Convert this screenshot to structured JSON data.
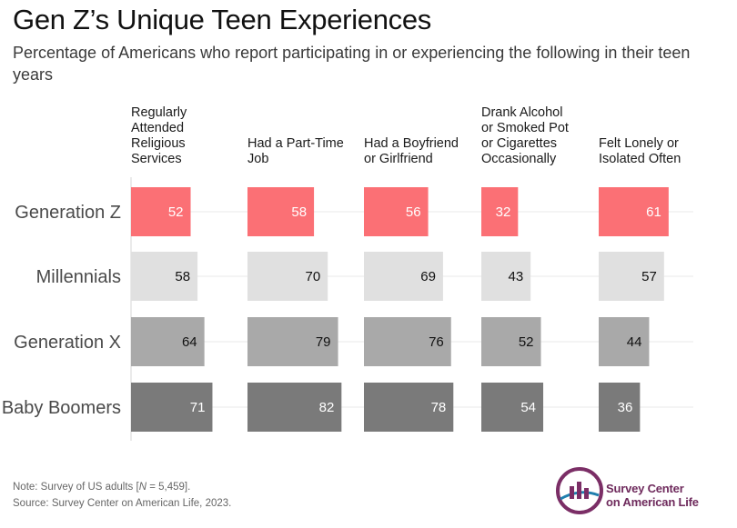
{
  "title": "Gen Z’s Unique Teen Experiences",
  "subtitle": "Percentage of Americans who report participating in or experiencing the following in their teen years",
  "chart_data": {
    "type": "bar",
    "orientation": "horizontal",
    "layout": "small-multiples",
    "categories": [
      "Generation Z",
      "Millennials",
      "Generation X",
      "Baby Boomers"
    ],
    "panels": [
      {
        "title": "Regularly Attended Religious Services",
        "values": [
          52,
          58,
          64,
          71
        ]
      },
      {
        "title": "Had a Part-Time Job",
        "values": [
          58,
          70,
          79,
          82
        ]
      },
      {
        "title": "Had a Boyfriend or Girlfriend",
        "values": [
          56,
          69,
          76,
          78
        ]
      },
      {
        "title": "Drank Alcohol or Smoked Pot or Cigarettes Occasionally",
        "values": [
          32,
          43,
          52,
          54
        ]
      },
      {
        "title": "Felt Lonely or Isolated Often",
        "values": [
          61,
          57,
          44,
          36
        ]
      }
    ],
    "xlim": [
      0,
      100
    ],
    "grid": false,
    "legend": "none",
    "colors": {
      "Generation Z": "#fb7075",
      "Millennials": "#e0e0e0",
      "Generation X": "#a9a9a9",
      "Baby Boomers": "#7a7a7a"
    },
    "label_colors": {
      "Generation Z": "#ffffff",
      "Millennials": "#111111",
      "Generation X": "#111111",
      "Baby Boomers": "#ffffff"
    }
  },
  "footer": {
    "note_prefix": "Note: Survey of US adults [",
    "note_n": "N",
    "note_suffix": " = 5,459].",
    "source": "Source: Survey Center on American Life, 2023."
  },
  "logo": {
    "line1": "Survey Center",
    "line2": "on American Life",
    "colors": {
      "ring": "#7b2e66",
      "accent": "#1f7fae"
    }
  }
}
